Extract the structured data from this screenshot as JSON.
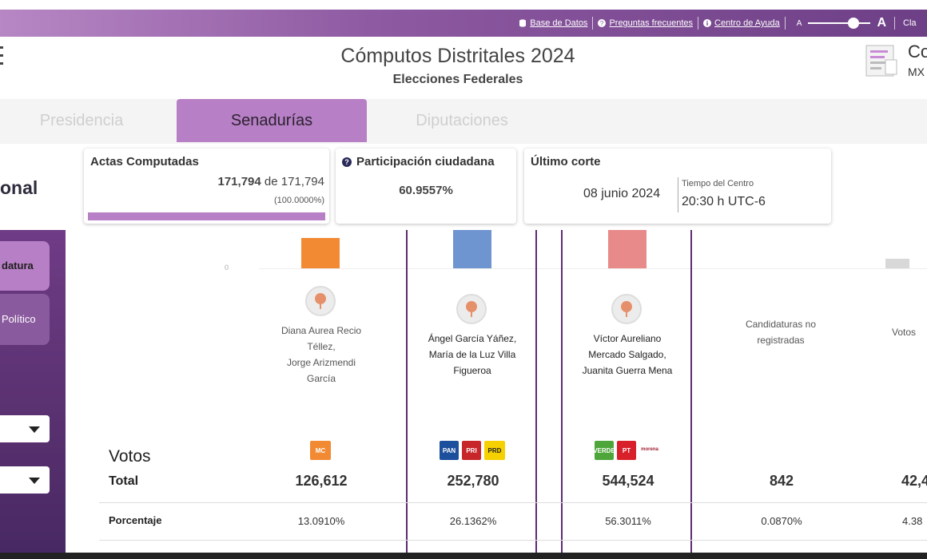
{
  "topbar": {
    "links": [
      "Base de Datos",
      "Preguntas frecuentes",
      "Centro de Ayuda"
    ],
    "font_small": "A",
    "font_big": "A",
    "cut_text": "Cla"
  },
  "header": {
    "title": "Cómputos Distritales 2024",
    "subtitle": "Elecciones Federales",
    "brand_line1": "Co",
    "brand_line2": "MX"
  },
  "tabs": [
    "Presidencia",
    "Senadurías",
    "Diputaciones"
  ],
  "active_tab": "Senadurías",
  "sidebar": {
    "section_label": "onal",
    "button1": "datura",
    "button2": "Político"
  },
  "stats": {
    "actas": {
      "title": "Actas Computadas",
      "computed": "171,794",
      "of": "de",
      "total": "171,794",
      "percent": "(100.0000%)",
      "progress": 1.0
    },
    "participacion": {
      "title": "Participación ciudadana",
      "value": "60.9557%"
    },
    "corte": {
      "title": "Último corte",
      "date": "08 junio 2024",
      "tz_label": "Tiempo del Centro",
      "time": "20:30 h UTC-6"
    }
  },
  "results": {
    "axis_zero": "0",
    "votos_heading": "Votos",
    "row_total": "Total",
    "row_porcentaje": "Porcentaje",
    "columns": [
      {
        "name_lines": [
          "Diana Aurea Recio",
          "Téllez,",
          "Jorge Arizmendi",
          "García"
        ],
        "total": "126,612",
        "percent": "13.0910%",
        "color": "#f28a33"
      },
      {
        "name_lines": [
          "Ángel García Yáñez,",
          "María de la Luz Villa",
          "Figueroa"
        ],
        "total": "252,780",
        "percent": "26.1362%",
        "color": "#6f95d1"
      },
      {
        "name_lines": [
          "Víctor Aureliano",
          "Mercado Salgado,",
          "Juanita Guerra Mena"
        ],
        "total": "544,524",
        "percent": "56.3011%",
        "color": "#e88a8a"
      },
      {
        "name_lines": [
          "Candidaturas no",
          "registradas"
        ],
        "total": "842",
        "percent": "0.0870%"
      },
      {
        "name_lines": [
          "Votos"
        ],
        "total": "42,4",
        "percent": "4.38"
      }
    ],
    "party_logos": {
      "mc": "MC",
      "pan": "PAN",
      "pri": "PRI",
      "prd": "PRD",
      "pvem": "VERDE",
      "pt": "PT",
      "morena": "morena"
    }
  }
}
